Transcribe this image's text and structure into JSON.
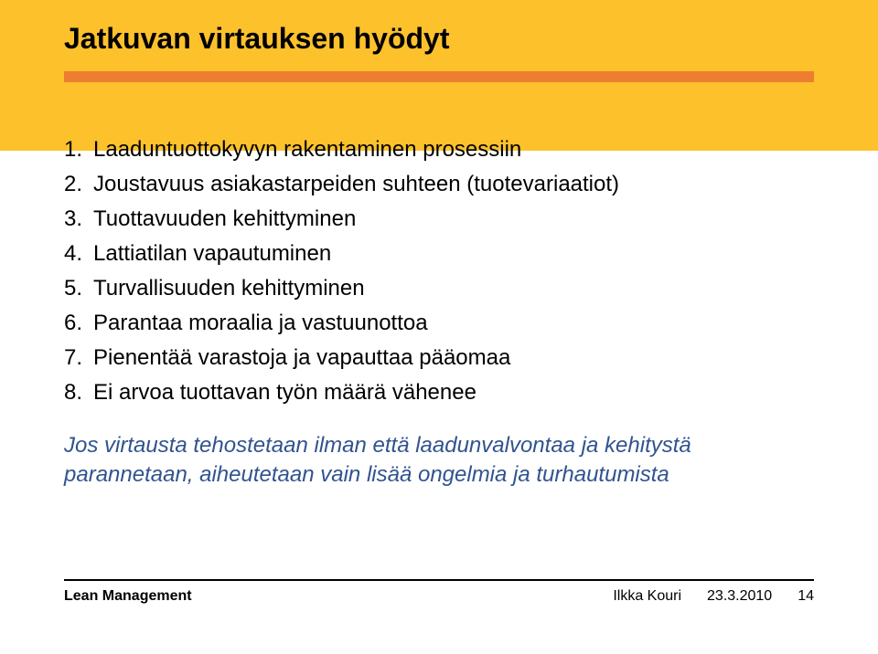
{
  "colors": {
    "header_bg": "#fdc12b",
    "underline": "#ed7d31",
    "text": "#000000",
    "note_color": "#31538f",
    "page_bg": "#ffffff",
    "footer_line": "#000000"
  },
  "title": "Jatkuvan virtauksen hyödyt",
  "list": [
    {
      "n": "1.",
      "text": "Laaduntuottokyvyn rakentaminen prosessiin"
    },
    {
      "n": "2.",
      "text": "Joustavuus asiakastarpeiden suhteen (tuotevariaatiot)"
    },
    {
      "n": "3.",
      "text": "Tuottavuuden kehittyminen"
    },
    {
      "n": "4.",
      "text": "Lattiatilan vapautuminen"
    },
    {
      "n": "5.",
      "text": "Turvallisuuden kehittyminen"
    },
    {
      "n": "6.",
      "text": "Parantaa moraalia ja vastuunottoa"
    },
    {
      "n": "7.",
      "text": "Pienentää varastoja ja vapauttaa pääomaa"
    },
    {
      "n": "8.",
      "text": "Ei arvoa tuottavan työn määrä vähenee"
    }
  ],
  "note": "Jos virtausta tehostetaan ilman että laadunvalvontaa ja kehitystä parannetaan, aiheutetaan vain lisää ongelmia ja turhautumista",
  "footer": {
    "left": "Lean Management",
    "author": "Ilkka Kouri",
    "date": "23.3.2010",
    "page": "14"
  },
  "typography": {
    "title_fontsize": 32,
    "body_fontsize": 24,
    "footer_fontsize": 16,
    "title_weight": "bold"
  }
}
